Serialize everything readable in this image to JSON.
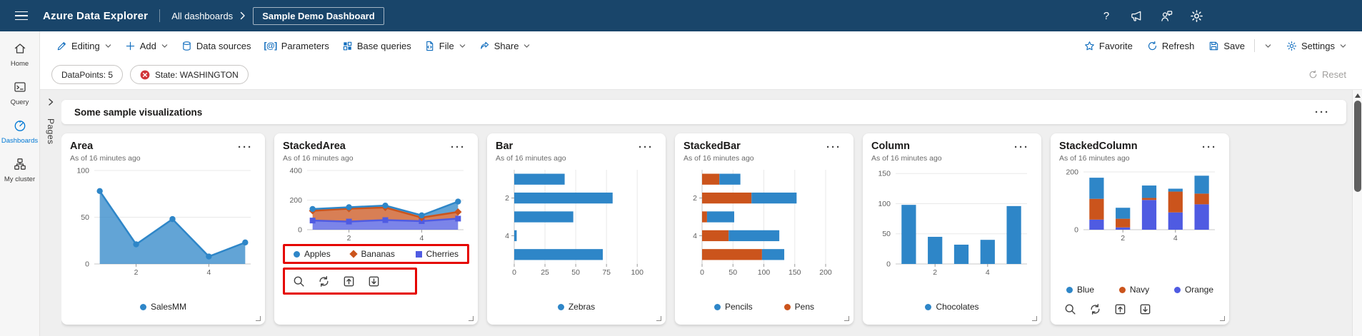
{
  "colors": {
    "header_bg": "#19456A",
    "accent_blue": "#0f6cbd",
    "active_nav": "#0078d4",
    "series_steel_blue": "#2E86C8",
    "series_orange": "#CB541C",
    "series_royal_blue": "#4F5BE2",
    "annotation_red": "#e50500",
    "error_red": "#d13438"
  },
  "header": {
    "app_title": "Azure Data Explorer",
    "breadcrumb_parent": "All dashboards",
    "breadcrumb_current": "Sample Demo Dashboard",
    "help_label": "?"
  },
  "nav": {
    "items": [
      {
        "label": "Home"
      },
      {
        "label": "Query"
      },
      {
        "label": "Dashboards",
        "active": true
      },
      {
        "label": "My cluster"
      }
    ]
  },
  "toolbar": {
    "editing": "Editing",
    "add": "Add",
    "data_sources": "Data sources",
    "parameters": "Parameters",
    "base_queries": "Base queries",
    "file": "File",
    "share": "Share",
    "favorite": "Favorite",
    "refresh": "Refresh",
    "save": "Save",
    "settings": "Settings"
  },
  "filters": {
    "datapoints_pill": "DataPoints: 5",
    "state_pill": "State: WASHINGTON",
    "reset_label": "Reset"
  },
  "pages_panel": {
    "label": "Pages"
  },
  "section": {
    "title": "Some sample visualizations"
  },
  "ui": {
    "more": "···"
  },
  "icons": {
    "parameters_glyph": "[@]",
    "header": [
      "hamburger-menu-icon",
      "help-icon",
      "announcements-megaphone-icon",
      "feedback-person-icon",
      "settings-gear-icon"
    ],
    "chart_toolbar": [
      "search-icon",
      "refresh-icon",
      "move-up-icon",
      "move-down-icon"
    ]
  },
  "chart_data": [
    {
      "type": "area",
      "stacked": false,
      "title": "Area",
      "subtitle": "As of 16 minutes ago",
      "x": [
        1,
        2,
        3,
        4,
        5
      ],
      "xticks": [
        2,
        4
      ],
      "yticks": [
        0,
        50,
        100
      ],
      "ylim": [
        0,
        100
      ],
      "series": [
        {
          "name": "SalesMM",
          "color": "#2E86C8",
          "marker": "circle",
          "values": [
            78,
            21,
            48,
            8,
            23
          ]
        }
      ],
      "legend_position": "bottom-center",
      "grid": true
    },
    {
      "type": "area",
      "stacked": true,
      "title": "StackedArea",
      "subtitle": "As of 16 minutes ago",
      "x": [
        1,
        2,
        3,
        4,
        5
      ],
      "xticks": [
        2,
        4
      ],
      "yticks": [
        0,
        200,
        400
      ],
      "ylim": [
        0,
        400
      ],
      "series": [
        {
          "name": "Apples",
          "color": "#2E86C8",
          "marker": "circle",
          "values": [
            12,
            10,
            13,
            15,
            70
          ]
        },
        {
          "name": "Bananas",
          "color": "#CB541C",
          "marker": "diamond",
          "values": [
            66,
            87,
            85,
            24,
            45
          ]
        },
        {
          "name": "Cherries",
          "color": "#4F5BE2",
          "marker": "square",
          "values": [
            62,
            55,
            65,
            58,
            75
          ]
        }
      ],
      "stack_note": "stacked bottom-to-top: Cherries, Bananas, Apples (reverse of legend order)",
      "annotations": [
        "red box around legend",
        "red box around chart toolbar icons"
      ],
      "legend_position": "bottom",
      "grid": true
    },
    {
      "type": "barh",
      "stacked": false,
      "title": "Bar",
      "subtitle": "As of 16 minutes ago",
      "categories": [
        1,
        2,
        3,
        4,
        5
      ],
      "ytick_labels": [
        2,
        4
      ],
      "xticks": [
        0,
        25,
        50,
        75,
        100
      ],
      "xlim": [
        0,
        108
      ],
      "series": [
        {
          "name": "Zebras",
          "color": "#2E86C8",
          "values": [
            41,
            80,
            48,
            2,
            72
          ]
        }
      ],
      "legend_position": "bottom-center",
      "grid": true
    },
    {
      "type": "barh",
      "stacked": true,
      "title": "StackedBar",
      "subtitle": "As of 16 minutes ago",
      "categories": [
        1,
        2,
        3,
        4,
        5
      ],
      "ytick_labels": [
        2,
        4
      ],
      "xticks": [
        0,
        50,
        100,
        150,
        200
      ],
      "xlim": [
        0,
        215
      ],
      "series": [
        {
          "name": "Pencils",
          "color": "#2E86C8",
          "values": [
            34,
            73,
            44,
            82,
            36
          ]
        },
        {
          "name": "Pens",
          "color": "#CB541C",
          "values": [
            28,
            80,
            8,
            43,
            97
          ]
        }
      ],
      "stack_note": "Pens segment drawn first (left), Pencils second",
      "legend_position": "bottom-center",
      "grid": true
    },
    {
      "type": "column",
      "stacked": false,
      "title": "Column",
      "subtitle": "As of 16 minutes ago",
      "categories": [
        1,
        2,
        3,
        4,
        5
      ],
      "xticks": [
        2,
        4
      ],
      "yticks": [
        0,
        50,
        100,
        150
      ],
      "ylim": [
        0,
        155
      ],
      "series": [
        {
          "name": "Chocolates",
          "color": "#2E86C8",
          "values": [
            98,
            45,
            32,
            40,
            96
          ]
        }
      ],
      "legend_position": "bottom-center",
      "grid": true
    },
    {
      "type": "column",
      "stacked": true,
      "title": "StackedColumn",
      "subtitle": "As of 16 minutes ago",
      "categories": [
        1,
        2,
        3,
        4,
        5
      ],
      "xticks": [
        2,
        4
      ],
      "yticks": [
        0,
        200
      ],
      "ylim": [
        0,
        205
      ],
      "series": [
        {
          "name": "Blue",
          "color": "#2E86C8",
          "values": [
            73,
            38,
            43,
            10,
            62
          ]
        },
        {
          "name": "Navy",
          "color": "#CB541C",
          "values": [
            72,
            30,
            7,
            72,
            37
          ]
        },
        {
          "name": "Orange",
          "color": "#4F5BE2",
          "values": [
            35,
            8,
            103,
            60,
            88
          ]
        }
      ],
      "stack_note": "stacked bottom-to-top: Orange, Navy, Blue (reverse of legend order)",
      "legend_position": "bottom",
      "grid": true
    }
  ]
}
